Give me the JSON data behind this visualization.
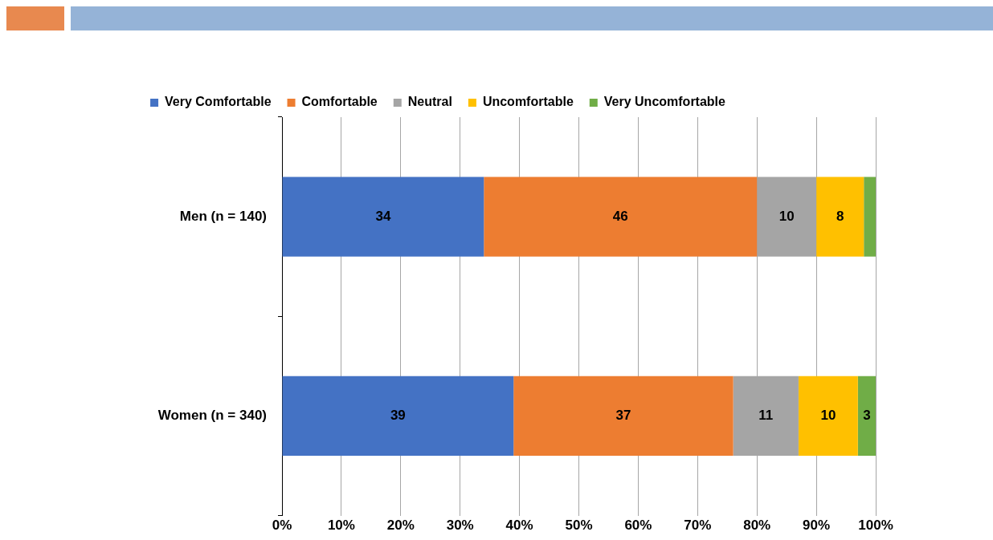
{
  "chart_data": {
    "type": "bar",
    "orientation": "horizontal",
    "stacked": true,
    "categories": [
      "Men (n = 140)",
      "Women (n = 340)"
    ],
    "series": [
      {
        "name": "Very Comfortable",
        "color": "#4472c4",
        "values": [
          34,
          39
        ],
        "value_labels": [
          "34",
          "39"
        ]
      },
      {
        "name": "Comfortable",
        "color": "#ed7d31",
        "values": [
          46,
          37
        ],
        "value_labels": [
          "46",
          "37"
        ]
      },
      {
        "name": "Neutral",
        "color": "#a5a5a5",
        "values": [
          10,
          11
        ],
        "value_labels": [
          "10",
          "11"
        ]
      },
      {
        "name": "Uncomfortable",
        "color": "#ffc000",
        "values": [
          8,
          10
        ],
        "value_labels": [
          "8",
          "10"
        ]
      },
      {
        "name": "Very Uncomfortable",
        "color": "#70ad47",
        "values": [
          2,
          3
        ],
        "value_labels": [
          null,
          "3"
        ]
      }
    ],
    "xlim": [
      0,
      100
    ],
    "xticks": [
      {
        "value": 0,
        "label": "0%"
      },
      {
        "value": 10,
        "label": "10%"
      },
      {
        "value": 20,
        "label": "20%"
      },
      {
        "value": 30,
        "label": "30%"
      },
      {
        "value": 40,
        "label": "40%"
      },
      {
        "value": 50,
        "label": "50%"
      },
      {
        "value": 60,
        "label": "60%"
      },
      {
        "value": 70,
        "label": "70%"
      },
      {
        "value": 80,
        "label": "80%"
      },
      {
        "value": 90,
        "label": "90%"
      },
      {
        "value": 100,
        "label": "100%"
      }
    ],
    "grid": "x",
    "legend": "top"
  }
}
